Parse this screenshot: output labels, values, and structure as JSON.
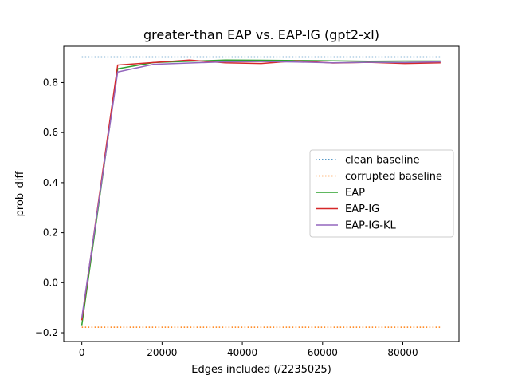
{
  "chart_data": {
    "type": "line",
    "title": "greater-than EAP vs. EAP-IG (gpt2-xl)",
    "xlabel": "Edges included (/2235025)",
    "ylabel": "prob_diff",
    "xlim": [
      -4500,
      94000
    ],
    "ylim": [
      -0.235,
      0.945
    ],
    "xticks": [
      0,
      20000,
      40000,
      60000,
      80000
    ],
    "yticks": [
      -0.2,
      0.0,
      0.2,
      0.4,
      0.6,
      0.8
    ],
    "xtick_labels": [
      "0",
      "20000",
      "40000",
      "60000",
      "80000"
    ],
    "ytick_labels": [
      "−0.2",
      "0.0",
      "0.2",
      "0.4",
      "0.6",
      "0.8"
    ],
    "grid": false,
    "legend": "center-right",
    "series": [
      {
        "name": "clean baseline",
        "color": "#1f77b4",
        "style": "dotted",
        "x": [
          0,
          89400
        ],
        "y": [
          0.902,
          0.902
        ]
      },
      {
        "name": "corrupted baseline",
        "color": "#ff7f0e",
        "style": "dotted",
        "x": [
          0,
          89400
        ],
        "y": [
          -0.178,
          -0.178
        ]
      },
      {
        "name": "EAP",
        "color": "#2ca02c",
        "style": "solid",
        "x": [
          0,
          8940,
          17880,
          26820,
          35760,
          44700,
          53640,
          62580,
          71520,
          80460,
          89400
        ],
        "y": [
          -0.17,
          0.855,
          0.88,
          0.885,
          0.89,
          0.889,
          0.888,
          0.887,
          0.885,
          0.886,
          0.886
        ]
      },
      {
        "name": "EAP-IG",
        "color": "#d62728",
        "style": "solid",
        "x": [
          0,
          8940,
          17880,
          26820,
          35760,
          44700,
          53640,
          62580,
          71520,
          80460,
          89400
        ],
        "y": [
          -0.15,
          0.87,
          0.88,
          0.89,
          0.879,
          0.876,
          0.887,
          0.878,
          0.881,
          0.876,
          0.879
        ]
      },
      {
        "name": "EAP-IG-KL",
        "color": "#9467bd",
        "style": "solid",
        "x": [
          0,
          8940,
          17880,
          26820,
          35760,
          44700,
          53640,
          62580,
          71520,
          80460,
          89400
        ],
        "y": [
          -0.14,
          0.842,
          0.873,
          0.878,
          0.883,
          0.884,
          0.882,
          0.879,
          0.881,
          0.88,
          0.883
        ]
      }
    ]
  }
}
